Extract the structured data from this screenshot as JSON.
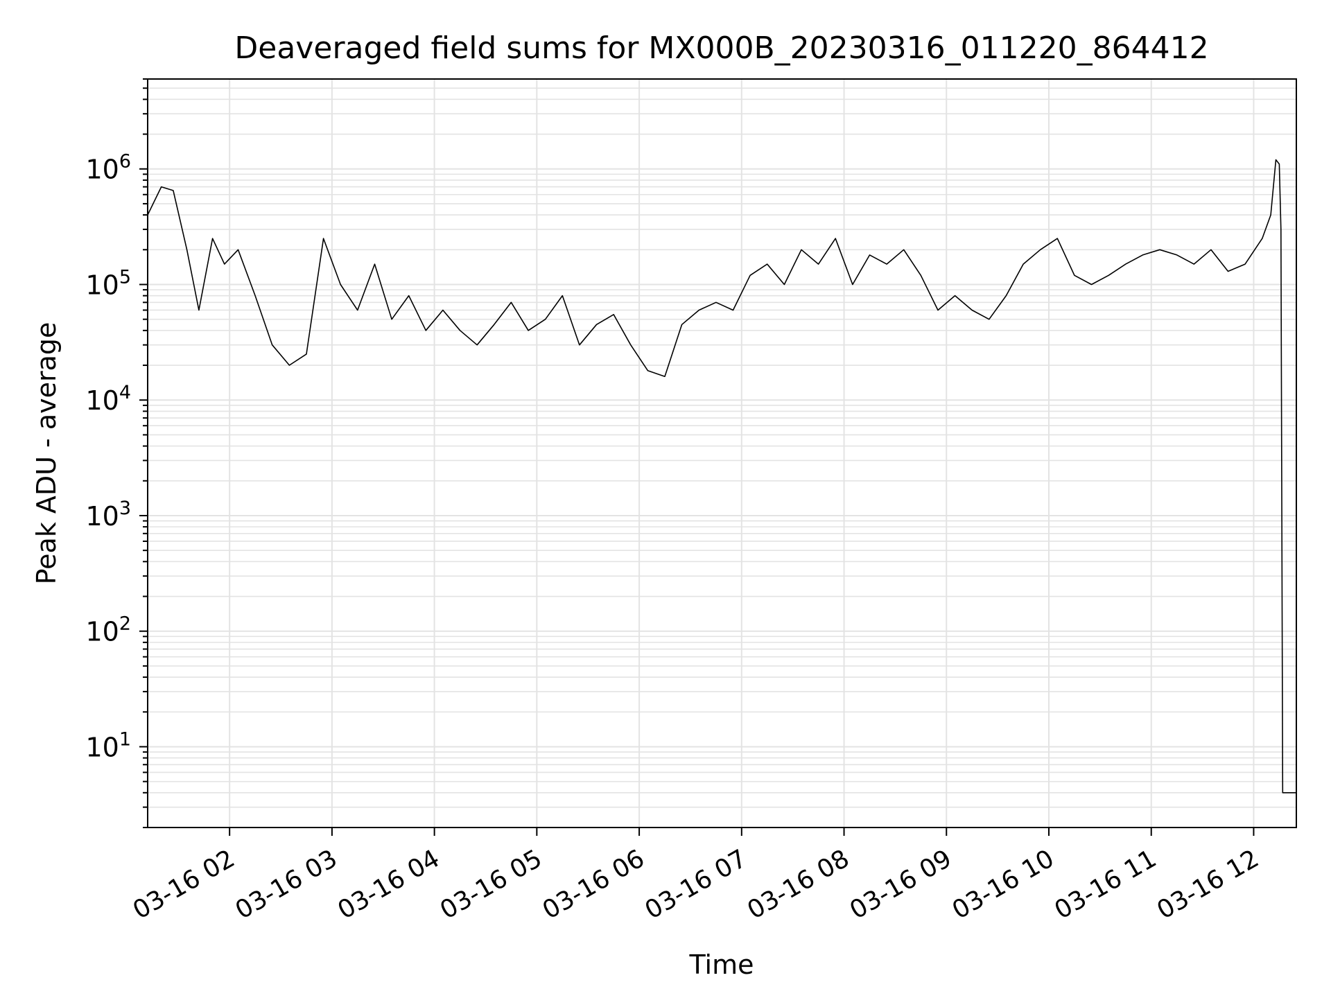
{
  "chart_data": {
    "type": "line",
    "title": "Deaveraged field sums for MX000B_20230316_011220_864412",
    "xlabel": "Time",
    "ylabel": "Peak ADU - average",
    "yscale": "log",
    "ylim": [
      2,
      6000000
    ],
    "xlim": [
      "2023-03-16 01:12",
      "2023-03-16 12:25"
    ],
    "grid": true,
    "grid_color": "#e3e3e3",
    "line_color": "#000000",
    "x_ticks": [
      "2023-03-16 02:00",
      "2023-03-16 03:00",
      "2023-03-16 04:00",
      "2023-03-16 05:00",
      "2023-03-16 06:00",
      "2023-03-16 07:00",
      "2023-03-16 08:00",
      "2023-03-16 09:00",
      "2023-03-16 10:00",
      "2023-03-16 11:00",
      "2023-03-16 12:00"
    ],
    "x_tick_labels": [
      "03-16 02",
      "03-16 03",
      "03-16 04",
      "03-16 05",
      "03-16 06",
      "03-16 07",
      "03-16 08",
      "03-16 09",
      "03-16 10",
      "03-16 11",
      "03-16 12"
    ],
    "y_ticks": [
      10,
      100,
      1000,
      10000,
      100000,
      1000000
    ],
    "y_tick_labels": [
      {
        "base": "10",
        "exp": "1"
      },
      {
        "base": "10",
        "exp": "2"
      },
      {
        "base": "10",
        "exp": "3"
      },
      {
        "base": "10",
        "exp": "4"
      },
      {
        "base": "10",
        "exp": "5"
      },
      {
        "base": "10",
        "exp": "6"
      }
    ],
    "series": [
      {
        "x": [
          "2023-03-16 01:12",
          "2023-03-16 01:20",
          "2023-03-16 01:27",
          "2023-03-16 01:35",
          "2023-03-16 01:42",
          "2023-03-16 01:50",
          "2023-03-16 01:57",
          "2023-03-16 02:05",
          "2023-03-16 02:15",
          "2023-03-16 02:25",
          "2023-03-16 02:35",
          "2023-03-16 02:45",
          "2023-03-16 02:55",
          "2023-03-16 03:05",
          "2023-03-16 03:15",
          "2023-03-16 03:25",
          "2023-03-16 03:35",
          "2023-03-16 03:45",
          "2023-03-16 03:55",
          "2023-03-16 04:05",
          "2023-03-16 04:15",
          "2023-03-16 04:25",
          "2023-03-16 04:35",
          "2023-03-16 04:45",
          "2023-03-16 04:55",
          "2023-03-16 05:05",
          "2023-03-16 05:15",
          "2023-03-16 05:25",
          "2023-03-16 05:35",
          "2023-03-16 05:45",
          "2023-03-16 05:55",
          "2023-03-16 06:05",
          "2023-03-16 06:15",
          "2023-03-16 06:25",
          "2023-03-16 06:35",
          "2023-03-16 06:45",
          "2023-03-16 06:55",
          "2023-03-16 07:05",
          "2023-03-16 07:15",
          "2023-03-16 07:25",
          "2023-03-16 07:35",
          "2023-03-16 07:45",
          "2023-03-16 07:55",
          "2023-03-16 08:05",
          "2023-03-16 08:15",
          "2023-03-16 08:25",
          "2023-03-16 08:35",
          "2023-03-16 08:45",
          "2023-03-16 08:55",
          "2023-03-16 09:05",
          "2023-03-16 09:15",
          "2023-03-16 09:25",
          "2023-03-16 09:35",
          "2023-03-16 09:45",
          "2023-03-16 09:55",
          "2023-03-16 10:05",
          "2023-03-16 10:15",
          "2023-03-16 10:25",
          "2023-03-16 10:35",
          "2023-03-16 10:45",
          "2023-03-16 10:55",
          "2023-03-16 11:05",
          "2023-03-16 11:15",
          "2023-03-16 11:25",
          "2023-03-16 11:35",
          "2023-03-16 11:45",
          "2023-03-16 11:55",
          "2023-03-16 12:05",
          "2023-03-16 12:10",
          "2023-03-16 12:13",
          "2023-03-16 12:15",
          "2023-03-16 12:16",
          "2023-03-16 12:17",
          "2023-03-16 12:20",
          "2023-03-16 12:25"
        ],
        "y": [
          400000,
          700000,
          650000,
          200000,
          60000,
          250000,
          150000,
          200000,
          80000,
          30000,
          20000,
          25000,
          250000,
          100000,
          60000,
          150000,
          50000,
          80000,
          40000,
          60000,
          40000,
          30000,
          45000,
          70000,
          40000,
          50000,
          80000,
          30000,
          45000,
          55000,
          30000,
          18000,
          16000,
          45000,
          60000,
          70000,
          60000,
          120000,
          150000,
          100000,
          200000,
          150000,
          250000,
          100000,
          180000,
          150000,
          200000,
          120000,
          60000,
          80000,
          60000,
          50000,
          80000,
          150000,
          200000,
          250000,
          120000,
          100000,
          120000,
          150000,
          180000,
          200000,
          180000,
          150000,
          200000,
          130000,
          150000,
          250000,
          400000,
          1200000,
          1100000,
          300000,
          4,
          4,
          4
        ]
      }
    ]
  }
}
